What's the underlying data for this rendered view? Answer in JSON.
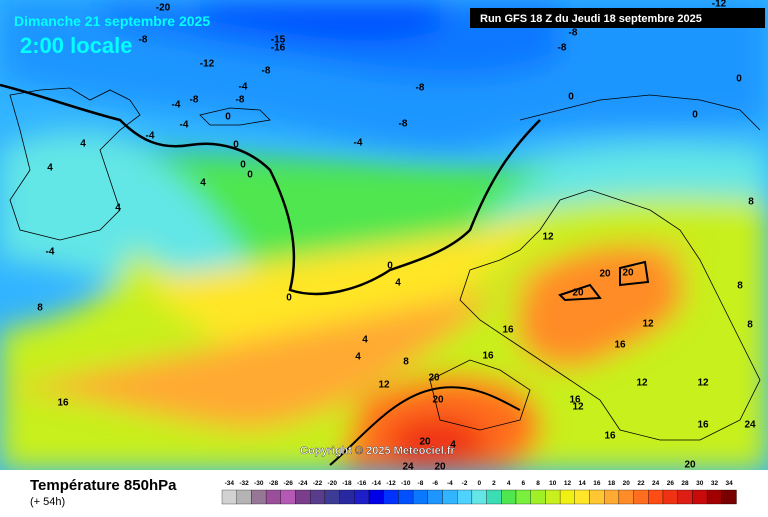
{
  "header": {
    "date": "Dimanche 21 septembre 2025",
    "time": "2:00 locale",
    "run": "Run GFS 18 Z du Jeudi 18 septembre 2025"
  },
  "copyright": "Copyright © 2025 Meteociel.fr",
  "footer": {
    "title": "Température 850hPa",
    "lead": "(+ 54h)"
  },
  "scale": {
    "values": [
      -34,
      -32,
      -30,
      -28,
      -26,
      -24,
      -22,
      -20,
      -18,
      -16,
      -14,
      -12,
      -10,
      -8,
      -6,
      -4,
      -2,
      0,
      2,
      4,
      6,
      8,
      10,
      12,
      14,
      16,
      18,
      20,
      22,
      24,
      26,
      28,
      30,
      32,
      34
    ],
    "colors": [
      "#d2d2d2",
      "#b4b4b4",
      "#967896",
      "#9b4f9b",
      "#b45ab4",
      "#7a3e8a",
      "#5a3c8c",
      "#3c3c96",
      "#2828a0",
      "#1e1ec8",
      "#0000e6",
      "#0032ff",
      "#0050ff",
      "#0a78ff",
      "#1e96ff",
      "#32b4ff",
      "#50d2ff",
      "#64e6e6",
      "#3cdcb4",
      "#50e650",
      "#78f03c",
      "#a0f028",
      "#c8f01e",
      "#f0f014",
      "#ffe628",
      "#ffc832",
      "#ffaa32",
      "#ff8c28",
      "#ff6e1e",
      "#ff4b14",
      "#f03214",
      "#dc1e14",
      "#c80a0a",
      "#a00000",
      "#780000"
    ]
  },
  "contour_labels": [
    -20,
    -8,
    -15,
    -16,
    -12,
    -8,
    -4,
    -8,
    -4,
    -8,
    0,
    -4,
    -4,
    -8,
    -8,
    -4,
    -8,
    -12,
    -8,
    0,
    0,
    0,
    4,
    4,
    4,
    4,
    -4,
    0,
    0,
    0,
    0,
    4,
    0,
    4,
    4,
    8,
    12,
    20,
    20,
    16,
    16,
    16,
    20,
    20,
    20,
    12,
    12,
    16,
    12,
    12,
    16,
    12,
    16,
    16,
    20,
    24,
    24,
    20,
    20,
    4,
    8,
    8,
    8,
    8
  ]
}
